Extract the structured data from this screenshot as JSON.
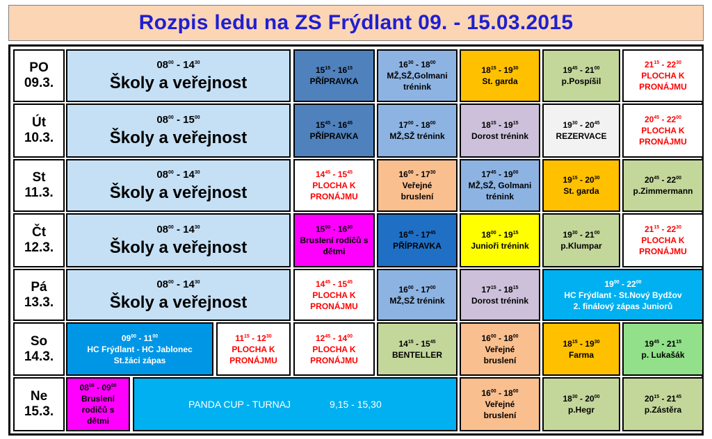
{
  "title": "Rozpis ledu na ZS Frýdlant  09. - 15.03.2015",
  "rows": [
    {
      "day": "PO",
      "date": "09.3.",
      "cells": [
        {
          "t1": "08",
          "s1": "00",
          "t2": "14",
          "s2": "30",
          "lines": [
            "Školy a veřejnost"
          ],
          "bg": "#c5e0f5",
          "fg": "#000000",
          "type": "school"
        },
        {
          "t1": "15",
          "s1": "15",
          "t2": "16",
          "s2": "15",
          "lines": [
            "PŘÍPRAVKA"
          ],
          "bg": "#4f81bd",
          "fg": "#000000"
        },
        {
          "t1": "16",
          "s1": "30",
          "t2": "18",
          "s2": "00",
          "lines": [
            "MŽ,SŽ,Golmani",
            "trénink"
          ],
          "bg": "#8db3e2",
          "fg": "#000000"
        },
        {
          "t1": "18",
          "s1": "15",
          "t2": "19",
          "s2": "30",
          "lines": [
            "St. garda"
          ],
          "bg": "#ffc000",
          "fg": "#000000"
        },
        {
          "t1": "19",
          "s1": "45",
          "t2": "21",
          "s2": "00",
          "lines": [
            "p.Pospíšil"
          ],
          "bg": "#c4d79b",
          "fg": "#000000"
        },
        {
          "t1": "21",
          "s1": "15",
          "t2": "22",
          "s2": "30",
          "lines": [
            "PLOCHA K",
            "PRONÁJMU"
          ],
          "bg": "#ffffff",
          "fg": "#ff0000"
        }
      ]
    },
    {
      "day": "Út",
      "date": "10.3.",
      "cells": [
        {
          "t1": "08",
          "s1": "00",
          "t2": "15",
          "s2": "00",
          "lines": [
            "Školy a veřejnost"
          ],
          "bg": "#c5e0f5",
          "fg": "#000000",
          "type": "school"
        },
        {
          "t1": "15",
          "s1": "45",
          "t2": "16",
          "s2": "45",
          "lines": [
            "PŘÍPRAVKA"
          ],
          "bg": "#4f81bd",
          "fg": "#000000"
        },
        {
          "t1": "17",
          "s1": "00",
          "t2": "18",
          "s2": "00",
          "lines": [
            "MŽ,SŽ trénink"
          ],
          "bg": "#8db3e2",
          "fg": "#000000"
        },
        {
          "t1": "18",
          "s1": "15",
          "t2": "19",
          "s2": "15",
          "lines": [
            "Dorost trénink"
          ],
          "bg": "#ccc0da",
          "fg": "#000000"
        },
        {
          "t1": "19",
          "s1": "30",
          "t2": "20",
          "s2": "45",
          "lines": [
            "REZERVACE"
          ],
          "bg": "#f2f2f2",
          "fg": "#000000"
        },
        {
          "t1": "20",
          "s1": "45",
          "t2": "22",
          "s2": "00",
          "lines": [
            "PLOCHA K",
            "PRONÁJMU"
          ],
          "bg": "#ffffff",
          "fg": "#ff0000"
        }
      ]
    },
    {
      "day": "St",
      "date": "11.3.",
      "cells": [
        {
          "t1": "08",
          "s1": "00",
          "t2": "14",
          "s2": "30",
          "lines": [
            "Školy a veřejnost"
          ],
          "bg": "#c5e0f5",
          "fg": "#000000",
          "type": "school"
        },
        {
          "t1": "14",
          "s1": "45",
          "t2": "15",
          "s2": "45",
          "lines": [
            "PLOCHA K",
            "PRONÁJMU"
          ],
          "bg": "#ffffff",
          "fg": "#ff0000"
        },
        {
          "t1": "16",
          "s1": "00",
          "t2": "17",
          "s2": "30",
          "lines": [
            "Veřejné",
            "bruslení"
          ],
          "bg": "#fabf8f",
          "fg": "#000000"
        },
        {
          "t1": "17",
          "s1": "45",
          "t2": "19",
          "s2": "00",
          "lines": [
            "MŽ,SŽ, Golmani",
            "trénink"
          ],
          "bg": "#8db3e2",
          "fg": "#000000"
        },
        {
          "t1": "19",
          "s1": "15",
          "t2": "20",
          "s2": "30",
          "lines": [
            "St. garda"
          ],
          "bg": "#ffc000",
          "fg": "#000000"
        },
        {
          "t1": "20",
          "s1": "45",
          "t2": "22",
          "s2": "00",
          "lines": [
            "p.Zimmermann"
          ],
          "bg": "#c4d79b",
          "fg": "#000000"
        }
      ]
    },
    {
      "day": "Čt",
      "date": "12.3.",
      "cells": [
        {
          "t1": "08",
          "s1": "00",
          "t2": "14",
          "s2": "30",
          "lines": [
            "Školy a veřejnost"
          ],
          "bg": "#c5e0f5",
          "fg": "#000000",
          "type": "school"
        },
        {
          "t1": "15",
          "s1": "00",
          "t2": "16",
          "s2": "30",
          "lines": [
            "Bruslení rodičů s",
            "dětmi"
          ],
          "bg": "#ff00ff",
          "fg": "#000000"
        },
        {
          "t1": "16",
          "s1": "45",
          "t2": "17",
          "s2": "45",
          "lines": [
            "PŘÍPRAVKA"
          ],
          "bg": "#1f6fc5",
          "fg": "#000000"
        },
        {
          "t1": "18",
          "s1": "00",
          "t2": "19",
          "s2": "15",
          "lines": [
            "Junioři trénink"
          ],
          "bg": "#ffff00",
          "fg": "#000000"
        },
        {
          "t1": "19",
          "s1": "30",
          "t2": "21",
          "s2": "00",
          "lines": [
            "p.Klumpar"
          ],
          "bg": "#c4d79b",
          "fg": "#000000"
        },
        {
          "t1": "21",
          "s1": "15",
          "t2": "22",
          "s2": "30",
          "lines": [
            "PLOCHA K",
            "PRONÁJMU"
          ],
          "bg": "#ffffff",
          "fg": "#ff0000"
        }
      ]
    },
    {
      "day": "Pá",
      "date": "13.3.",
      "cells": [
        {
          "t1": "08",
          "s1": "00",
          "t2": "14",
          "s2": "30",
          "lines": [
            "Školy a veřejnost"
          ],
          "bg": "#c5e0f5",
          "fg": "#000000",
          "type": "school"
        },
        {
          "t1": "14",
          "s1": "45",
          "t2": "15",
          "s2": "45",
          "lines": [
            "PLOCHA K",
            "PRONÁJMU"
          ],
          "bg": "#ffffff",
          "fg": "#ff0000"
        },
        {
          "t1": "16",
          "s1": "00",
          "t2": "17",
          "s2": "00",
          "lines": [
            "MŽ,SŽ   trénink"
          ],
          "bg": "#8db3e2",
          "fg": "#000000"
        },
        {
          "t1": "17",
          "s1": "15",
          "t2": "18",
          "s2": "15",
          "lines": [
            "Dorost trénink"
          ],
          "bg": "#ccc0da",
          "fg": "#000000"
        },
        {
          "t1": "19",
          "s1": "00",
          "t2": "22",
          "s2": "00",
          "lines": [
            "HC Frýdlant - St.Nový Bydžov",
            "2. finálový zápas Juniorů"
          ],
          "bg": "#00b0f0",
          "fg": "#ffffff",
          "type": "wide"
        }
      ]
    },
    {
      "day": "So",
      "date": "14.3.",
      "cells": [
        {
          "t1": "09",
          "s1": "00",
          "t2": "11",
          "s2": "00",
          "lines": [
            "HC Frýdlant - HC Jablonec",
            "St.žáci zápas"
          ],
          "bg": "#0096e6",
          "fg": "#ffffff",
          "type": "match"
        },
        {
          "t1": "11",
          "s1": "15",
          "t2": "12",
          "s2": "30",
          "lines": [
            "PLOCHA K",
            "PRONÁJMU"
          ],
          "bg": "#ffffff",
          "fg": "#ff0000"
        },
        {
          "t1": "12",
          "s1": "45",
          "t2": "14",
          "s2": "00",
          "lines": [
            "PLOCHA K",
            "PRONÁJMU"
          ],
          "bg": "#ffffff",
          "fg": "#ff0000"
        },
        {
          "t1": "14",
          "s1": "15",
          "t2": "15",
          "s2": "45",
          "lines": [
            "BENTELLER"
          ],
          "bg": "#c4d79b",
          "fg": "#000000"
        },
        {
          "t1": "16",
          "s1": "00",
          "t2": "18",
          "s2": "00",
          "lines": [
            "Veřejné",
            "bruslení"
          ],
          "bg": "#fabf8f",
          "fg": "#000000"
        },
        {
          "t1": "18",
          "s1": "15",
          "t2": "19",
          "s2": "30",
          "lines": [
            "Farma"
          ],
          "bg": "#ffc000",
          "fg": "#000000"
        },
        {
          "t1": "19",
          "s1": "45",
          "t2": "21",
          "s2": "15",
          "lines": [
            "p. Lukašák"
          ],
          "bg": "#92e08a",
          "fg": "#000000"
        }
      ]
    },
    {
      "day": "Ne",
      "date": "15.3.",
      "cells": [
        {
          "t1": "08",
          "s1": "00",
          "t2": "09",
          "s2": "00",
          "lines": [
            "Bruslení",
            "rodičů s",
            "dětmi"
          ],
          "bg": "#ff00ff",
          "fg": "#000000",
          "type": "narrow"
        },
        {
          "label": "PANDA CUP  - TURNAJ",
          "time": "9,15 - 15,30",
          "bg": "#00b0f0",
          "fg": "#ffffff",
          "type": "panda"
        },
        {
          "t1": "16",
          "s1": "00",
          "t2": "18",
          "s2": "00",
          "lines": [
            "Veřejné",
            "bruslení"
          ],
          "bg": "#fabf8f",
          "fg": "#000000"
        },
        {
          "t1": "18",
          "s1": "30",
          "t2": "20",
          "s2": "00",
          "lines": [
            "p.Hegr"
          ],
          "bg": "#c4d79b",
          "fg": "#000000"
        },
        {
          "t1": "20",
          "s1": "15",
          "t2": "21",
          "s2": "45",
          "lines": [
            "p.Zástěra"
          ],
          "bg": "#c4d79b",
          "fg": "#000000"
        }
      ]
    }
  ]
}
